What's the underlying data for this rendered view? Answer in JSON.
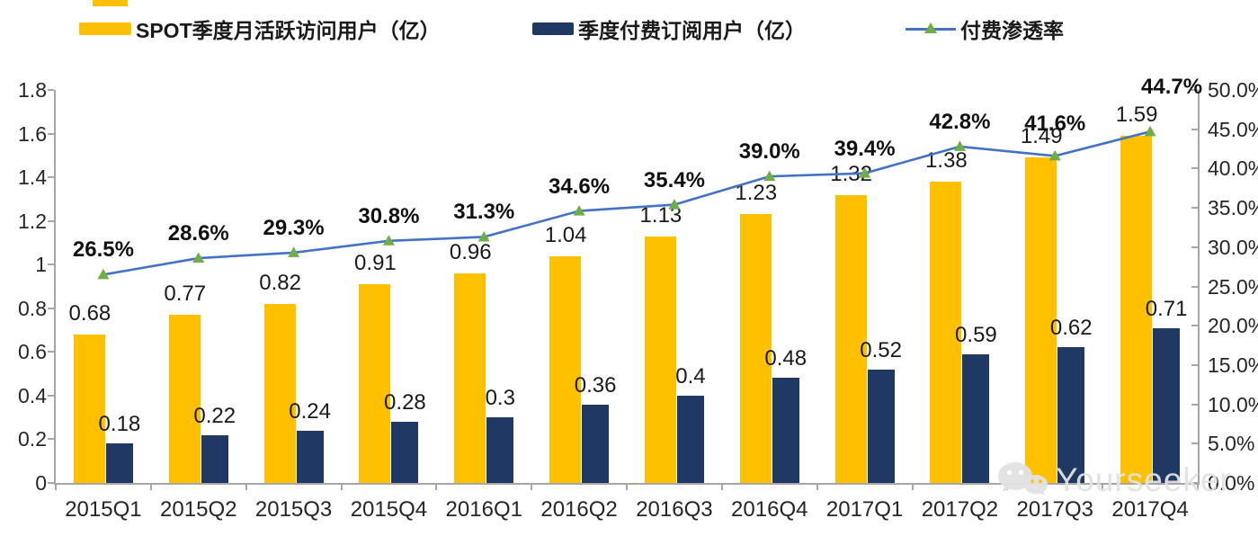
{
  "legend": {
    "items": [
      {
        "label": "SPOT季度月活跃访问用户（亿）",
        "color": "#FFC000",
        "type": "swatch"
      },
      {
        "label": "季度付费订阅用户（亿）",
        "color": "#1F3864",
        "type": "swatch"
      },
      {
        "label": "付费渗透率",
        "color": "#4472C4",
        "marker_color": "#70AD47",
        "type": "line"
      }
    ]
  },
  "chart_data": {
    "type": "bar",
    "subtype": "grouped bars with secondary-axis line",
    "categories": [
      "2015Q1",
      "2015Q2",
      "2015Q3",
      "2015Q4",
      "2016Q1",
      "2016Q2",
      "2016Q3",
      "2016Q4",
      "2017Q1",
      "2017Q2",
      "2017Q3",
      "2017Q4"
    ],
    "series": [
      {
        "name": "SPOT季度月活跃访问用户（亿）",
        "kind": "bar",
        "axis": "left",
        "color": "#FFC000",
        "values": [
          0.68,
          0.77,
          0.82,
          0.91,
          0.96,
          1.04,
          1.13,
          1.23,
          1.32,
          1.38,
          1.49,
          1.59
        ],
        "labels": [
          "0.68",
          "0.77",
          "0.82",
          "0.91",
          "0.96",
          "1.04",
          "1.13",
          "1.23",
          "1.32",
          "1.38",
          "1.49",
          "1.59"
        ]
      },
      {
        "name": "季度付费订阅用户（亿）",
        "kind": "bar",
        "axis": "left",
        "color": "#1F3864",
        "values": [
          0.18,
          0.22,
          0.24,
          0.28,
          0.3,
          0.36,
          0.4,
          0.48,
          0.52,
          0.59,
          0.62,
          0.71
        ],
        "labels": [
          "0.18",
          "0.22",
          "0.24",
          "0.28",
          "0.3",
          "0.36",
          "0.4",
          "0.48",
          "0.52",
          "0.59",
          "0.62",
          "0.71"
        ]
      },
      {
        "name": "付费渗透率",
        "kind": "line",
        "axis": "right",
        "color": "#4472C4",
        "marker": "triangle",
        "marker_color": "#70AD47",
        "values": [
          26.5,
          28.6,
          29.3,
          30.8,
          31.3,
          34.6,
          35.4,
          39.0,
          39.4,
          42.8,
          41.6,
          44.7
        ],
        "labels": [
          "26.5%",
          "28.6%",
          "29.3%",
          "30.8%",
          "31.3%",
          "34.6%",
          "35.4%",
          "39.0%",
          "39.4%",
          "42.8%",
          "41.6%",
          "44.7%"
        ]
      }
    ],
    "left_axis": {
      "min": 0,
      "max": 1.8,
      "step": 0.2,
      "tick_labels": [
        "0",
        "0.2",
        "0.4",
        "0.6",
        "0.8",
        "1",
        "1.2",
        "1.4",
        "1.6",
        "1.8"
      ]
    },
    "right_axis": {
      "min": 0,
      "max": 50,
      "step": 5,
      "tick_labels": [
        "0.0%",
        "5.0%",
        "10.0%",
        "15.0%",
        "20.0%",
        "25.0%",
        "30.0%",
        "35.0%",
        "40.0%",
        "45.0%",
        "50.0%"
      ]
    },
    "title": "",
    "xlabel": "",
    "ylabel": "",
    "grid": false,
    "legend_position": "top",
    "axis_color": "#A6A6A6"
  },
  "watermark": {
    "text": "Yourseeker",
    "icon": "wechat-icon"
  }
}
